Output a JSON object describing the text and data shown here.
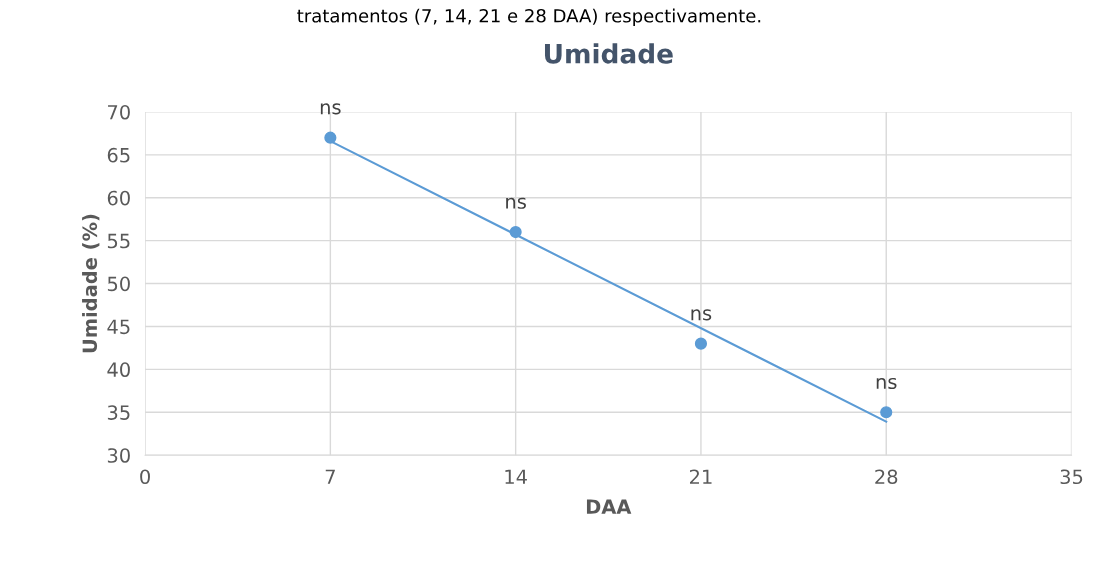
{
  "chart_data": {
    "type": "scatter",
    "title": "Umidade",
    "xlabel": "DAA",
    "ylabel": "Umidade (%)",
    "series": [
      {
        "color": "#5b9bd5",
        "x": [
          7,
          14,
          21,
          28
        ],
        "values": [
          67,
          56,
          43,
          35
        ],
        "marker": "circle"
      },
      {
        "type": "line",
        "color": "#5b9bd5",
        "x": [
          7,
          28
        ],
        "values": [
          66.6,
          33.9
        ],
        "marker": "none",
        "line_style": "solid"
      }
    ],
    "xlim": [
      0,
      35
    ],
    "xticks": [
      0,
      7,
      14,
      21,
      28,
      35
    ],
    "ylim": [
      30,
      70
    ],
    "yticks": [
      30,
      35,
      40,
      45,
      50,
      55,
      60,
      65,
      70
    ],
    "grid": true,
    "legend": false,
    "annotations": [
      "tratamentos (7, 14, 21 e 28 DAA) respectivamente.",
      {
        "text": "ns",
        "x": 7,
        "y": 67
      },
      {
        "text": "ns",
        "x": 14,
        "y": 56
      },
      {
        "text": "ns",
        "x": 21,
        "y": 43
      },
      {
        "text": "ns",
        "x": 28,
        "y": 35
      }
    ]
  }
}
